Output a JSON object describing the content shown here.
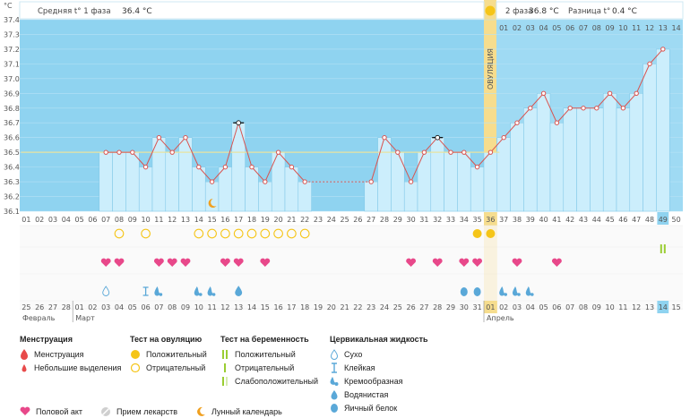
{
  "unit": "°C",
  "header": {
    "phase1_label": "Средняя t° 1 фаза",
    "phase1_value": "36.4 °C",
    "phase2_label": "2 фаза",
    "phase2_value": "36.8 °C",
    "diff_label": "Разница t°",
    "diff_value": "0.4 °C"
  },
  "ovulation_label": "ОВУЛЯЦИЯ",
  "colors": {
    "pre_bg": "#8fd3f0",
    "post_bg": "#9fdaf3",
    "bar_fill": "#cceefc",
    "line": "#d9534f",
    "ovulation": "#f6dd8e",
    "cover_line": "#e8e3a0",
    "heart": "#e8488a",
    "egg_yellow": "#f5c518",
    "drop_blue": "#5aa8d8",
    "highlight": "#8fd3f0"
  },
  "chart_data": {
    "type": "line",
    "title": "",
    "ylabel": "°C",
    "ylim": [
      36.1,
      37.4
    ],
    "yticks": [
      36.1,
      36.2,
      36.3,
      36.4,
      36.5,
      36.6,
      36.7,
      36.8,
      36.9,
      37.0,
      37.1,
      37.2,
      37.3,
      37.4
    ],
    "coverline": 36.5,
    "ovulation_day": 36,
    "cycle_days": [
      "01",
      "02",
      "03",
      "04",
      "05",
      "06",
      "07",
      "08",
      "09",
      "10",
      "11",
      "12",
      "13",
      "14",
      "15",
      "16",
      "17",
      "18",
      "19",
      "20",
      "21",
      "22",
      "23",
      "24",
      "25",
      "26",
      "27",
      "28",
      "29",
      "30",
      "31",
      "32",
      "33",
      "34",
      "35",
      "36",
      "37",
      "38",
      "39",
      "40",
      "41",
      "42",
      "43",
      "44",
      "45",
      "46",
      "47",
      "48",
      "49",
      "50"
    ],
    "temperatures": [
      null,
      null,
      null,
      null,
      null,
      null,
      36.5,
      36.5,
      36.5,
      36.4,
      36.6,
      36.5,
      36.6,
      36.4,
      36.3,
      36.4,
      36.7,
      36.4,
      36.3,
      36.5,
      36.4,
      36.3,
      null,
      null,
      null,
      null,
      36.3,
      36.6,
      36.5,
      36.3,
      36.5,
      36.6,
      36.5,
      36.5,
      36.4,
      36.5,
      36.6,
      36.7,
      36.8,
      36.9,
      36.7,
      36.8,
      36.8,
      36.8,
      36.9,
      36.8,
      36.9,
      37.1,
      37.2,
      null
    ],
    "marked_days": [
      17,
      32
    ],
    "phase2_header_days": [
      "01",
      "02",
      "03",
      "04",
      "05",
      "06",
      "07",
      "08",
      "09",
      "10",
      "11",
      "12",
      "13",
      "14"
    ],
    "calendar_dates": [
      "25",
      "26",
      "27",
      "28",
      "01",
      "02",
      "03",
      "04",
      "05",
      "06",
      "07",
      "08",
      "09",
      "10",
      "11",
      "12",
      "13",
      "14",
      "15",
      "16",
      "17",
      "18",
      "19",
      "20",
      "21",
      "22",
      "23",
      "24",
      "25",
      "26",
      "27",
      "28",
      "29",
      "30",
      "31",
      "01",
      "02",
      "03",
      "04",
      "05",
      "06",
      "07",
      "08",
      "09",
      "10",
      "11",
      "12",
      "13",
      "14",
      "15"
    ],
    "calendar_red": [
      3,
      4,
      10,
      11,
      14,
      15,
      20,
      21,
      27,
      28,
      34,
      35,
      41,
      42
    ],
    "months": [
      "Февраль",
      "Март",
      "Апрель"
    ],
    "highlight_day": 49,
    "ovulation_test_negative_days": [
      8,
      10,
      14,
      15,
      16,
      17,
      18,
      19,
      20,
      21,
      22
    ],
    "ovulation_test_positive_days": [
      35,
      36
    ],
    "pregnancy_test_positive_days": [
      49
    ],
    "intercourse_days": [
      7,
      8,
      11,
      12,
      13,
      16,
      17,
      19,
      30,
      32,
      34,
      35,
      38,
      41
    ],
    "cervical_dry_days": [
      7
    ],
    "cervical_sticky_days": [
      10
    ],
    "cervical_creamy_days": [
      11,
      14,
      15,
      37,
      38,
      39
    ],
    "cervical_watery_days": [
      17
    ],
    "cervical_eggwhite_days": [
      34,
      35
    ],
    "moon_day": 15
  },
  "legend": {
    "menstruation": {
      "title": "Менструация",
      "items": [
        "Менструация",
        "Небольшие выделения"
      ]
    },
    "ovulation_test": {
      "title": "Тест на овуляцию",
      "items": [
        "Положительный",
        "Отрицательный"
      ]
    },
    "pregnancy_test": {
      "title": "Тест на беременность",
      "items": [
        "Положительный",
        "Отрицательный",
        "Слабоположительный"
      ]
    },
    "cervical": {
      "title": "Цервикальная жидкость",
      "items": [
        "Сухо",
        "Клейкая",
        "Кремообразная",
        "Водянистая",
        "Яичный белок"
      ]
    },
    "bottom": [
      "Половой акт",
      "Прием лекарств",
      "Лунный календарь"
    ]
  }
}
